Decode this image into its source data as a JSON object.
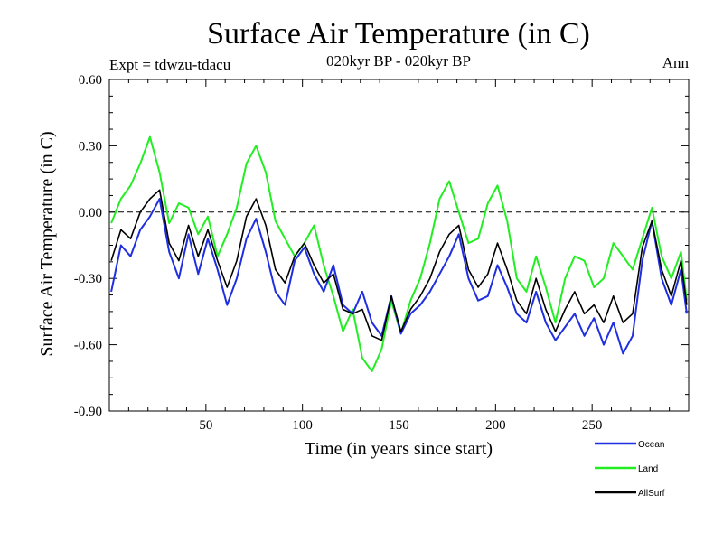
{
  "chart_data": {
    "type": "line",
    "title": "Surface Air Temperature (in C)",
    "subtitle_left": "Expt = tdwzu-tdacu",
    "subtitle_center": "020kyr BP - 020kyr BP",
    "subtitle_right": "Ann",
    "xlabel": "Time (in years since start)",
    "ylabel": "Surface Air Temperature (in C)",
    "xlim": [
      0,
      300
    ],
    "ylim": [
      -0.9,
      0.6
    ],
    "xticks": [
      50,
      100,
      150,
      200,
      250
    ],
    "xtick_labels": [
      "50",
      "100",
      "150",
      "200",
      "250"
    ],
    "yticks": [
      0.6,
      0.3,
      0.0,
      -0.3,
      -0.6,
      -0.9
    ],
    "ytick_labels": [
      "0.60",
      "0.30",
      "0.00",
      "-0.30",
      "-0.60",
      "-0.90"
    ],
    "reference_line": 0.0,
    "grid": false,
    "legend_position": "bottom-right, below the plot",
    "x": [
      1,
      6,
      11,
      16,
      21,
      26,
      31,
      36,
      41,
      46,
      51,
      56,
      61,
      66,
      71,
      76,
      81,
      86,
      91,
      96,
      101,
      106,
      111,
      116,
      121,
      126,
      131,
      136,
      141,
      146,
      151,
      156,
      161,
      166,
      171,
      176,
      181,
      186,
      191,
      196,
      201,
      206,
      211,
      216,
      221,
      226,
      231,
      236,
      241,
      246,
      251,
      256,
      261,
      266,
      271,
      276,
      281,
      286,
      291,
      296,
      299
    ],
    "series": [
      {
        "name": "Ocean",
        "color": "#1f2ee0",
        "values": [
          -0.36,
          -0.15,
          -0.2,
          -0.08,
          -0.02,
          0.06,
          -0.18,
          -0.3,
          -0.1,
          -0.28,
          -0.12,
          -0.26,
          -0.42,
          -0.3,
          -0.12,
          -0.03,
          -0.18,
          -0.36,
          -0.42,
          -0.22,
          -0.16,
          -0.28,
          -0.36,
          -0.24,
          -0.42,
          -0.46,
          -0.36,
          -0.5,
          -0.56,
          -0.38,
          -0.55,
          -0.46,
          -0.42,
          -0.36,
          -0.28,
          -0.2,
          -0.1,
          -0.3,
          -0.4,
          -0.38,
          -0.24,
          -0.34,
          -0.46,
          -0.5,
          -0.36,
          -0.5,
          -0.58,
          -0.52,
          -0.46,
          -0.56,
          -0.48,
          -0.6,
          -0.5,
          -0.64,
          -0.56,
          -0.22,
          -0.04,
          -0.3,
          -0.42,
          -0.26,
          -0.46
        ]
      },
      {
        "name": "Land",
        "color": "#22ee22",
        "values": [
          -0.05,
          0.06,
          0.12,
          0.22,
          0.34,
          0.18,
          -0.05,
          0.04,
          0.02,
          -0.1,
          -0.02,
          -0.2,
          -0.1,
          0.02,
          0.22,
          0.3,
          0.18,
          -0.04,
          -0.12,
          -0.2,
          -0.14,
          -0.06,
          -0.24,
          -0.38,
          -0.54,
          -0.44,
          -0.66,
          -0.72,
          -0.62,
          -0.4,
          -0.55,
          -0.4,
          -0.3,
          -0.14,
          0.06,
          0.14,
          0.0,
          -0.14,
          -0.12,
          0.04,
          0.12,
          -0.04,
          -0.3,
          -0.36,
          -0.2,
          -0.34,
          -0.5,
          -0.3,
          -0.2,
          -0.22,
          -0.34,
          -0.3,
          -0.14,
          -0.2,
          -0.26,
          -0.12,
          0.02,
          -0.2,
          -0.3,
          -0.18,
          -0.4
        ]
      },
      {
        "name": "AllSurf",
        "color": "#000000",
        "values": [
          -0.22,
          -0.08,
          -0.12,
          0.0,
          0.06,
          0.1,
          -0.14,
          -0.22,
          -0.06,
          -0.2,
          -0.08,
          -0.22,
          -0.34,
          -0.22,
          -0.02,
          0.06,
          -0.06,
          -0.26,
          -0.32,
          -0.2,
          -0.14,
          -0.24,
          -0.32,
          -0.28,
          -0.44,
          -0.46,
          -0.44,
          -0.56,
          -0.58,
          -0.38,
          -0.54,
          -0.44,
          -0.38,
          -0.3,
          -0.18,
          -0.1,
          -0.06,
          -0.26,
          -0.34,
          -0.28,
          -0.14,
          -0.26,
          -0.4,
          -0.46,
          -0.3,
          -0.44,
          -0.54,
          -0.44,
          -0.36,
          -0.46,
          -0.42,
          -0.5,
          -0.38,
          -0.5,
          -0.46,
          -0.16,
          -0.04,
          -0.26,
          -0.38,
          -0.22,
          -0.42
        ]
      }
    ]
  }
}
